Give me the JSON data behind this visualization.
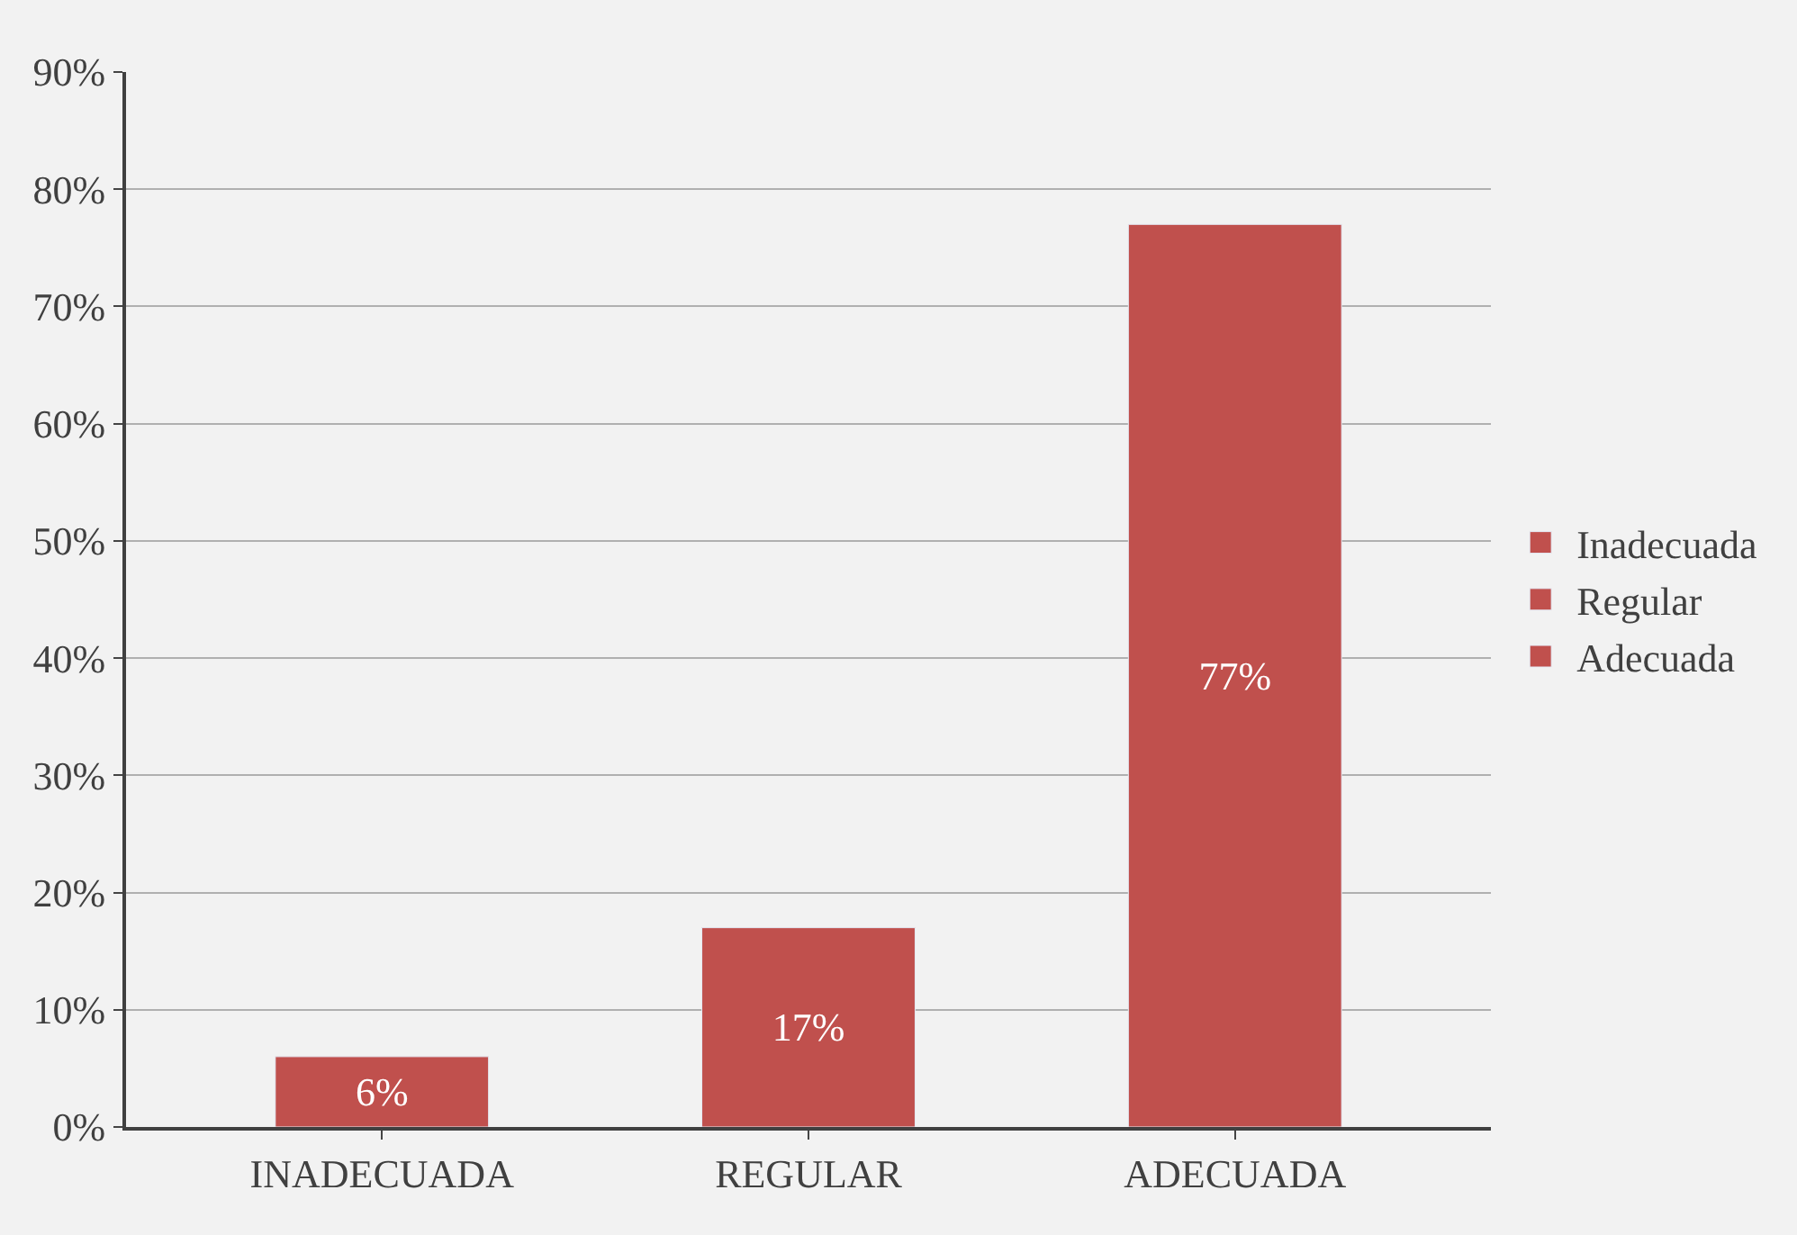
{
  "chart_data": {
    "type": "bar",
    "categories": [
      "INADECUADA",
      "REGULAR",
      "ADECUADA"
    ],
    "series": [
      {
        "name": "Inadecuada",
        "color": "#c0504d",
        "values": [
          6,
          null,
          null
        ],
        "value_labels": [
          "6%",
          null,
          null
        ]
      },
      {
        "name": "Regular",
        "color": "#c0504d",
        "values": [
          null,
          17,
          null
        ],
        "value_labels": [
          null,
          "17%",
          null
        ]
      },
      {
        "name": "Adecuada",
        "color": "#c0504d",
        "values": [
          null,
          null,
          77
        ],
        "value_labels": [
          null,
          null,
          "77%"
        ]
      }
    ],
    "stacked": true,
    "ylim": [
      0,
      90
    ],
    "yticks": [
      {
        "value": 0,
        "label": "0%"
      },
      {
        "value": 10,
        "label": "10%"
      },
      {
        "value": 20,
        "label": "20%"
      },
      {
        "value": 30,
        "label": "30%"
      },
      {
        "value": 40,
        "label": "40%"
      },
      {
        "value": 50,
        "label": "50%"
      },
      {
        "value": 60,
        "label": "60%"
      },
      {
        "value": 70,
        "label": "70%"
      },
      {
        "value": 80,
        "label": "80%"
      },
      {
        "value": 90,
        "label": "90%"
      }
    ],
    "grid": "y",
    "legend": "right"
  }
}
